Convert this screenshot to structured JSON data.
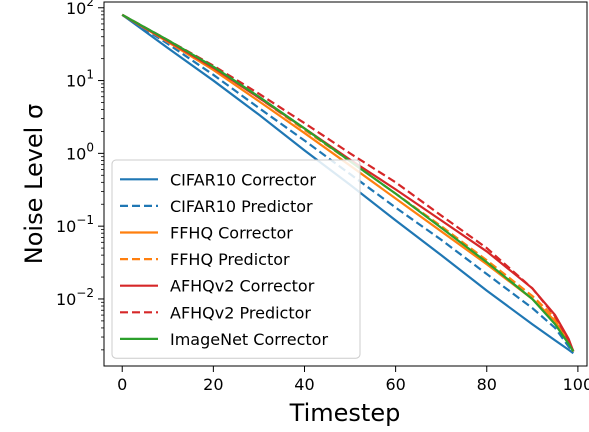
{
  "chart_data": {
    "type": "line",
    "xlabel": "Timestep",
    "ylabel": "Noise Level σ",
    "yscale": "log",
    "xlim": [
      -4,
      102
    ],
    "ylim": [
      0.0012,
      120
    ],
    "x_ticks": [
      0,
      20,
      40,
      60,
      80,
      100
    ],
    "y_ticks": [
      {
        "value": 0.01,
        "base": "10",
        "exp": "−2"
      },
      {
        "value": 0.1,
        "base": "10",
        "exp": "−1"
      },
      {
        "value": 1,
        "base": "10",
        "exp": "0"
      },
      {
        "value": 10,
        "base": "10",
        "exp": "1"
      },
      {
        "value": 100,
        "base": "10",
        "exp": "2"
      }
    ],
    "grid": false,
    "legend_position": "lower-left",
    "series": [
      {
        "name": "CIFAR10 Corrector",
        "color": "#1f77b4",
        "dash": "solid",
        "x": [
          0,
          10,
          20,
          30,
          40,
          50,
          60,
          70,
          80,
          90,
          95,
          98,
          99
        ],
        "y": [
          80,
          28,
          10,
          3.4,
          1.1,
          0.37,
          0.12,
          0.04,
          0.013,
          0.0045,
          0.0027,
          0.002,
          0.0018
        ]
      },
      {
        "name": "CIFAR10 Predictor",
        "color": "#1f77b4",
        "dash": "dashed",
        "x": [
          0,
          10,
          20,
          30,
          40,
          50,
          60,
          70,
          80,
          90,
          95,
          98,
          99
        ],
        "y": [
          80,
          32,
          12,
          4.2,
          1.5,
          0.52,
          0.18,
          0.065,
          0.022,
          0.0075,
          0.004,
          0.0022,
          0.0019
        ]
      },
      {
        "name": "FFHQ Corrector",
        "color": "#ff7f0e",
        "dash": "solid",
        "x": [
          0,
          10,
          20,
          30,
          40,
          50,
          60,
          70,
          80,
          90,
          95,
          98,
          99
        ],
        "y": [
          80,
          34,
          14,
          5.2,
          1.9,
          0.68,
          0.24,
          0.085,
          0.03,
          0.01,
          0.005,
          0.0025,
          0.0019
        ]
      },
      {
        "name": "FFHQ Predictor",
        "color": "#ff7f0e",
        "dash": "dashed",
        "x": [
          0,
          10,
          20,
          30,
          40,
          50,
          60,
          70,
          80,
          90,
          95,
          98,
          99
        ],
        "y": [
          80,
          35,
          15,
          5.8,
          2.1,
          0.78,
          0.28,
          0.1,
          0.034,
          0.011,
          0.0055,
          0.0026,
          0.0019
        ]
      },
      {
        "name": "AFHQv2 Corrector",
        "color": "#d62728",
        "dash": "solid",
        "x": [
          0,
          10,
          20,
          30,
          40,
          50,
          60,
          70,
          80,
          90,
          95,
          98,
          99
        ],
        "y": [
          80,
          35,
          15,
          5.8,
          2.2,
          0.82,
          0.32,
          0.12,
          0.045,
          0.014,
          0.006,
          0.0028,
          0.0019
        ]
      },
      {
        "name": "AFHQv2 Predictor",
        "color": "#d62728",
        "dash": "dashed",
        "x": [
          0,
          10,
          20,
          30,
          40,
          50,
          60,
          70,
          80,
          90,
          95,
          98,
          99
        ],
        "y": [
          80,
          36,
          16,
          6.6,
          2.6,
          1.0,
          0.4,
          0.14,
          0.05,
          0.014,
          0.0058,
          0.0027,
          0.0019
        ]
      },
      {
        "name": "ImageNet Corrector",
        "color": "#2ca02c",
        "dash": "solid",
        "x": [
          0,
          10,
          20,
          30,
          40,
          50,
          60,
          70,
          80,
          90,
          95,
          98,
          99
        ],
        "y": [
          80,
          36,
          15.5,
          6.0,
          2.2,
          0.78,
          0.28,
          0.095,
          0.032,
          0.01,
          0.0045,
          0.0024,
          0.0019
        ]
      }
    ]
  }
}
